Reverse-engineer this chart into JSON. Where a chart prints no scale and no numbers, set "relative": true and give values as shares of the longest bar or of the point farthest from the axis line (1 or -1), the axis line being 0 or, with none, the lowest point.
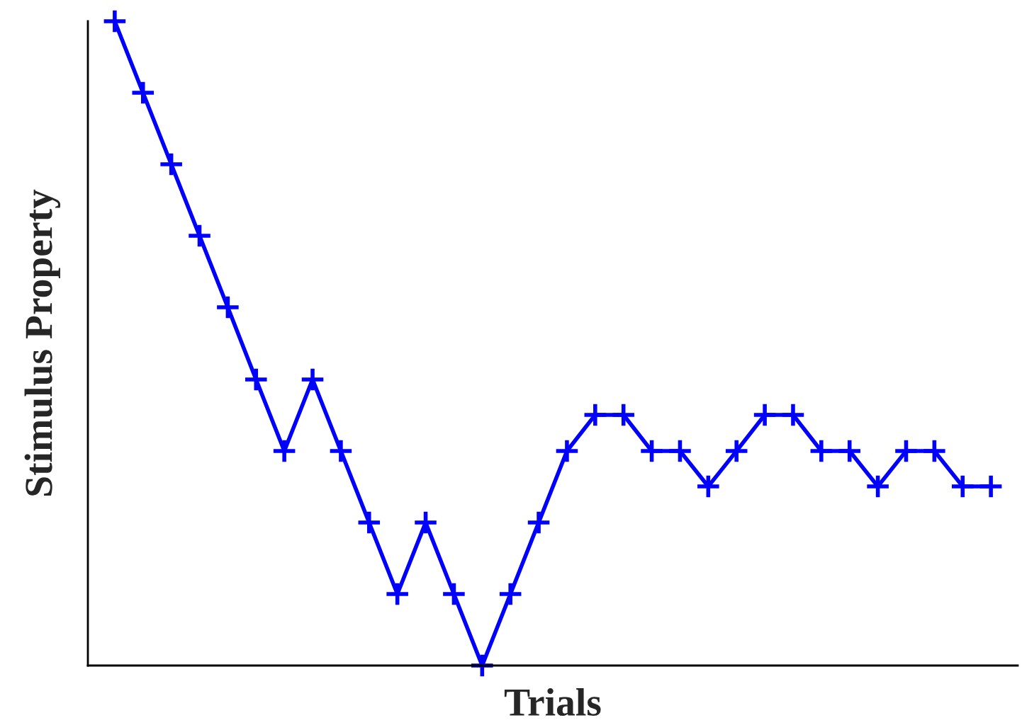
{
  "chart_data": {
    "type": "line",
    "xlabel": "Trials",
    "ylabel": "Stimulus Property",
    "relative": true,
    "categories": [
      null,
      null,
      null,
      null,
      null,
      null,
      null,
      null,
      null,
      null,
      null,
      null,
      null,
      null,
      null,
      null,
      null,
      null,
      null,
      null,
      null,
      null,
      null,
      null,
      null,
      null,
      null,
      null,
      null,
      null,
      null,
      null
    ],
    "series": [
      {
        "color": "#0000ff",
        "values": [
          1,
          0.889,
          0.778,
          0.667,
          0.556,
          0.444,
          0.333,
          0.444,
          0.333,
          0.222,
          0.111,
          0.222,
          0.111,
          0,
          0.111,
          0.222,
          0.333,
          0.389,
          0.389,
          0.333,
          0.333,
          0.278,
          0.333,
          0.389,
          0.389,
          0.333,
          0.333,
          0.278,
          0.333,
          0.333,
          0.278,
          0.278
        ]
      }
    ],
    "marker": "cross",
    "line_style": "solid",
    "grid": false,
    "legend": false
  }
}
